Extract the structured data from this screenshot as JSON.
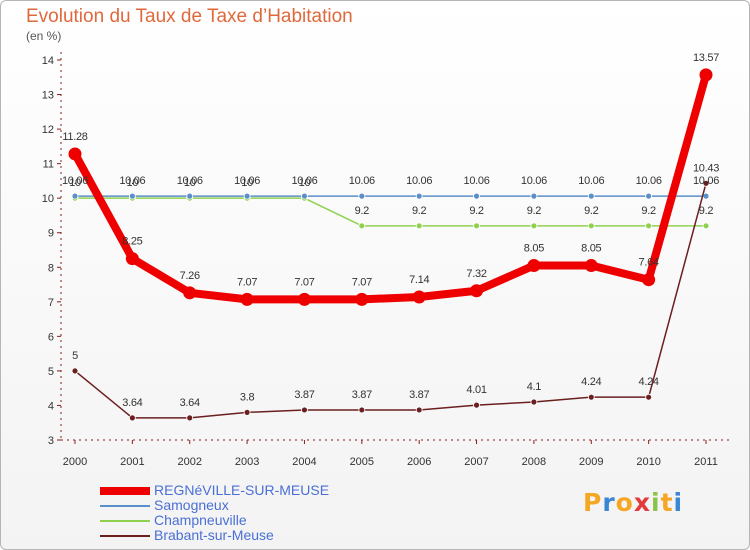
{
  "title": "Evolution du Taux de Taxe d’Habitation",
  "subtitle": "(en %)",
  "logo": {
    "letters": [
      "P",
      "r",
      "o",
      "x",
      "i",
      "t",
      "i"
    ],
    "colors": [
      "#f5a623",
      "#3a86d4",
      "#f5a623",
      "#e33b3b",
      "#8bc34a",
      "#f5a623",
      "#3a86d4"
    ]
  },
  "chart_data": {
    "type": "line",
    "x": [
      "2000",
      "2001",
      "2002",
      "2003",
      "2004",
      "2005",
      "2006",
      "2007",
      "2008",
      "2009",
      "2010",
      "2011"
    ],
    "ylim": [
      3,
      14
    ],
    "yticks": [
      "3",
      "4",
      "5",
      "6",
      "7",
      "8",
      "9",
      "10",
      "11",
      "12",
      "13",
      "14"
    ],
    "grid": false,
    "legend_position": "bottom-left",
    "series": [
      {
        "name": "REGNéVILLE-SUR-MEUSE",
        "color": "#ee0000",
        "values": [
          11.28,
          8.25,
          7.26,
          7.07,
          7.07,
          7.07,
          7.14,
          7.32,
          8.05,
          8.05,
          7.64,
          13.57
        ],
        "labels": [
          "11.28",
          "8.25",
          "7.26",
          "7.07",
          "7.07",
          "7.07",
          "7.14",
          "7.32",
          "8.05",
          "8.05",
          "7.64",
          "13.57"
        ]
      },
      {
        "name": "Samogneux",
        "color": "#5b8fc9",
        "values": [
          10.06,
          10.06,
          10.06,
          10.06,
          10.06,
          10.06,
          10.06,
          10.06,
          10.06,
          10.06,
          10.06,
          10.06
        ],
        "labels": [
          "10.06",
          "10.06",
          "10.06",
          "10.06",
          "10.06",
          "10.06",
          "10.06",
          "10.06",
          "10.06",
          "10.06",
          "10.06",
          "10.06"
        ]
      },
      {
        "name": "Champneuville",
        "color": "#8fd14f",
        "values": [
          10,
          10,
          10,
          10,
          10,
          9.2,
          9.2,
          9.2,
          9.2,
          9.2,
          9.2,
          9.2
        ],
        "labels": [
          "10",
          "10",
          "10",
          "10",
          "10",
          "9.2",
          "9.2",
          "9.2",
          "9.2",
          "9.2",
          "9.2",
          "9.2"
        ]
      },
      {
        "name": "Brabant-sur-Meuse",
        "color": "#6b1f1f",
        "values": [
          5,
          3.64,
          3.64,
          3.8,
          3.87,
          3.87,
          3.87,
          4.01,
          4.1,
          4.24,
          4.24,
          10.43
        ],
        "labels": [
          "5",
          "3.64",
          "3.64",
          "3.8",
          "3.87",
          "3.87",
          "3.87",
          "4.01",
          "4.1",
          "4.24",
          "4.24",
          "10.43"
        ]
      }
    ]
  }
}
